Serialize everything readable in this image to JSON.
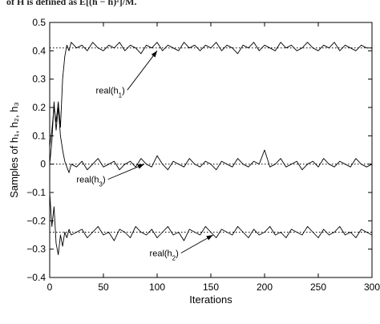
{
  "caption": "of H is defined as E[(h − h̄)²]/M.",
  "chart_data": {
    "type": "line",
    "xlabel": "Iterations",
    "ylabel": "Samples of h₁, h₂, h₃",
    "xlim": [
      0,
      300
    ],
    "ylim": [
      -0.4,
      0.5
    ],
    "xticks": [
      0,
      50,
      100,
      150,
      200,
      250,
      300
    ],
    "yticks": [
      -0.4,
      -0.3,
      -0.2,
      -0.1,
      0,
      0.1,
      0.2,
      0.3,
      0.4,
      0.5
    ],
    "xtick_labels": [
      "0",
      "50",
      "100",
      "150",
      "200",
      "250",
      "300"
    ],
    "ytick_labels": [
      "−0.4",
      "−0.3",
      "−0.2",
      "−0.1",
      "0",
      "0.1",
      "0.2",
      "0.3",
      "0.4",
      "0.5"
    ],
    "grid": false,
    "reference_lines": [
      0.41,
      0,
      -0.24
    ],
    "series": [
      {
        "x": [
          0,
          2,
          4,
          6,
          8,
          10,
          12,
          14,
          16,
          18,
          20,
          25,
          30,
          35,
          40,
          45,
          50,
          55,
          60,
          65,
          70,
          75,
          80,
          85,
          90,
          95,
          100,
          105,
          110,
          115,
          120,
          125,
          130,
          135,
          140,
          145,
          150,
          155,
          160,
          165,
          170,
          175,
          180,
          185,
          190,
          195,
          200,
          205,
          210,
          215,
          220,
          225,
          230,
          235,
          240,
          245,
          250,
          255,
          260,
          265,
          270,
          275,
          280,
          285,
          290,
          295,
          300
        ],
        "values": [
          0.06,
          0.12,
          0.2,
          0.15,
          0.22,
          0.13,
          0.3,
          0.38,
          0.42,
          0.4,
          0.43,
          0.41,
          0.42,
          0.4,
          0.43,
          0.41,
          0.4,
          0.42,
          0.41,
          0.43,
          0.4,
          0.42,
          0.41,
          0.39,
          0.42,
          0.41,
          0.43,
          0.4,
          0.42,
          0.41,
          0.4,
          0.43,
          0.41,
          0.42,
          0.4,
          0.42,
          0.41,
          0.43,
          0.4,
          0.42,
          0.41,
          0.39,
          0.42,
          0.41,
          0.43,
          0.4,
          0.42,
          0.41,
          0.4,
          0.43,
          0.41,
          0.42,
          0.4,
          0.41,
          0.43,
          0.41,
          0.4,
          0.42,
          0.41,
          0.43,
          0.4,
          0.42,
          0.41,
          0.4,
          0.42,
          0.41,
          0.41
        ]
      },
      {
        "x": [
          0,
          2,
          4,
          6,
          8,
          10,
          12,
          14,
          16,
          18,
          20,
          25,
          30,
          35,
          40,
          45,
          50,
          55,
          60,
          65,
          70,
          75,
          80,
          85,
          90,
          95,
          100,
          105,
          110,
          115,
          120,
          125,
          130,
          135,
          140,
          145,
          150,
          155,
          160,
          165,
          170,
          175,
          180,
          185,
          190,
          195,
          200,
          205,
          210,
          215,
          220,
          225,
          230,
          235,
          240,
          245,
          250,
          255,
          260,
          265,
          270,
          275,
          280,
          285,
          290,
          295,
          300
        ],
        "values": [
          0.0,
          0.08,
          0.22,
          0.12,
          0.2,
          0.1,
          0.05,
          0.01,
          -0.01,
          -0.03,
          0.0,
          -0.01,
          0.01,
          -0.02,
          0.0,
          0.02,
          -0.01,
          0.0,
          0.01,
          -0.02,
          0.0,
          0.01,
          -0.01,
          0.02,
          0.0,
          -0.01,
          0.03,
          0.0,
          -0.02,
          0.01,
          0.0,
          -0.01,
          0.02,
          0.0,
          -0.01,
          0.01,
          0.0,
          -0.02,
          0.01,
          0.0,
          -0.01,
          0.02,
          0.0,
          -0.01,
          0.01,
          0.0,
          0.05,
          -0.01,
          0.0,
          0.02,
          -0.01,
          0.0,
          0.01,
          -0.02,
          0.0,
          0.01,
          -0.01,
          0.02,
          0.0,
          -0.01,
          0.01,
          0.0,
          -0.01,
          0.02,
          0.0,
          -0.01,
          0.0
        ]
      },
      {
        "x": [
          0,
          2,
          4,
          6,
          8,
          10,
          12,
          14,
          16,
          18,
          20,
          25,
          30,
          35,
          40,
          45,
          50,
          55,
          60,
          65,
          70,
          75,
          80,
          85,
          90,
          95,
          100,
          105,
          110,
          115,
          120,
          125,
          130,
          135,
          140,
          145,
          150,
          155,
          160,
          165,
          170,
          175,
          180,
          185,
          190,
          195,
          200,
          205,
          210,
          215,
          220,
          225,
          230,
          235,
          240,
          245,
          250,
          255,
          260,
          265,
          270,
          275,
          280,
          285,
          290,
          295,
          300
        ],
        "values": [
          -0.1,
          -0.22,
          -0.15,
          -0.28,
          -0.32,
          -0.25,
          -0.29,
          -0.24,
          -0.26,
          -0.23,
          -0.25,
          -0.24,
          -0.23,
          -0.26,
          -0.24,
          -0.22,
          -0.25,
          -0.24,
          -0.27,
          -0.23,
          -0.24,
          -0.26,
          -0.22,
          -0.24,
          -0.25,
          -0.23,
          -0.26,
          -0.24,
          -0.22,
          -0.25,
          -0.24,
          -0.27,
          -0.23,
          -0.24,
          -0.25,
          -0.22,
          -0.24,
          -0.26,
          -0.23,
          -0.24,
          -0.25,
          -0.22,
          -0.24,
          -0.26,
          -0.23,
          -0.25,
          -0.24,
          -0.22,
          -0.25,
          -0.24,
          -0.26,
          -0.23,
          -0.24,
          -0.25,
          -0.22,
          -0.24,
          -0.26,
          -0.23,
          -0.25,
          -0.24,
          -0.22,
          -0.25,
          -0.24,
          -0.26,
          -0.23,
          -0.24,
          -0.25
        ]
      }
    ],
    "annotations": [
      {
        "label": "real(h",
        "sub": "1",
        "close": ")",
        "text_at": [
          70,
          0.25
        ],
        "arrow_to": [
          100,
          0.4
        ]
      },
      {
        "label": "real(h",
        "sub": "3",
        "close": ")",
        "text_at": [
          52,
          -0.065
        ],
        "arrow_to": [
          88,
          0.0
        ]
      },
      {
        "label": "real(h",
        "sub": "2",
        "close": ")",
        "text_at": [
          120,
          -0.325
        ],
        "arrow_to": [
          152,
          -0.25
        ]
      }
    ]
  }
}
